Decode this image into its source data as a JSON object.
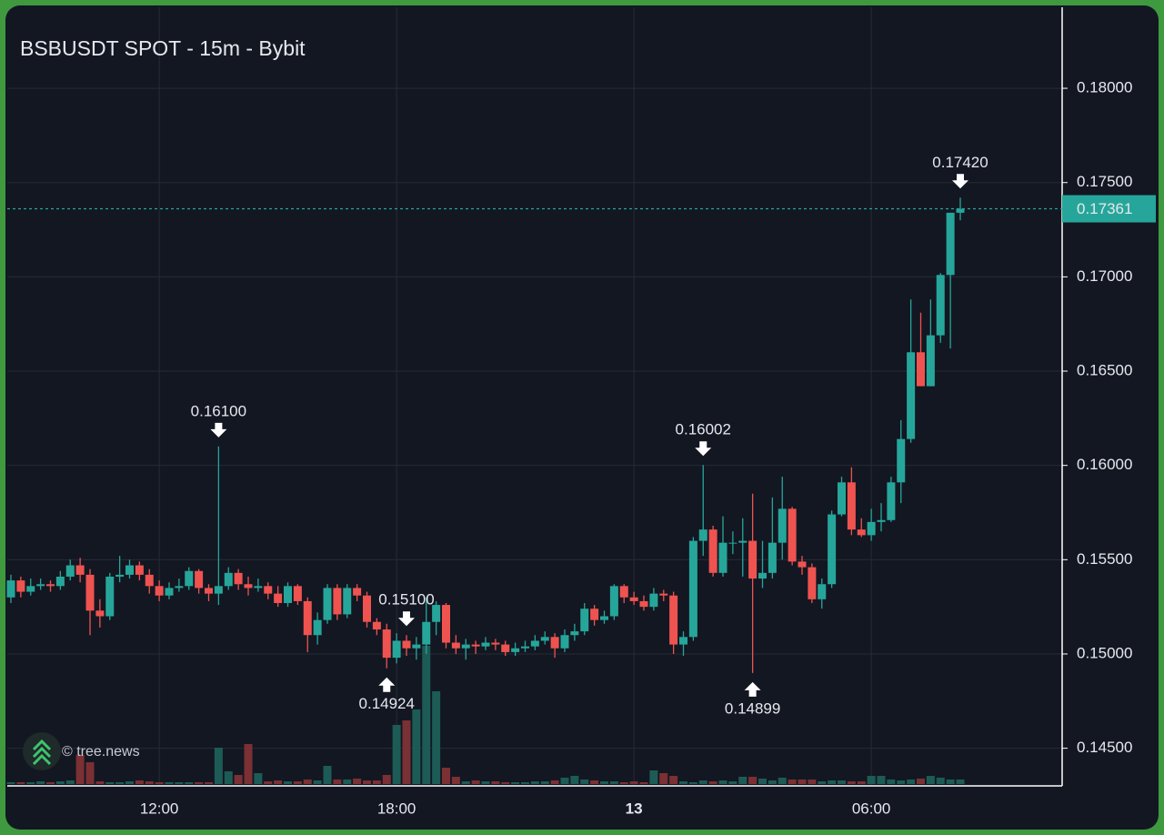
{
  "chart_data": {
    "type": "candlestick",
    "title": "BSBUSDT SPOT - 15m - Bybit",
    "watermark": "© tree.news",
    "categories": [
      null,
      null,
      null,
      null,
      null,
      null,
      null,
      null,
      null,
      null,
      null,
      null,
      null,
      null,
      null,
      "12:00",
      null,
      null,
      null,
      null,
      null,
      null,
      null,
      null,
      null,
      null,
      null,
      null,
      null,
      null,
      null,
      null,
      null,
      null,
      null,
      null,
      null,
      null,
      null,
      "18:00",
      null,
      null,
      null,
      null,
      null,
      null,
      null,
      null,
      null,
      null,
      null,
      null,
      null,
      null,
      null,
      null,
      null,
      null,
      null,
      null,
      null,
      null,
      null,
      "13",
      null,
      null,
      null,
      null,
      null,
      null,
      null,
      null,
      null,
      null,
      null,
      null,
      null,
      null,
      null,
      null,
      null,
      null,
      null,
      null,
      null,
      null,
      null,
      "06:00",
      null,
      null,
      null,
      null,
      null,
      null,
      null,
      null,
      null
    ],
    "open": [
      0.153,
      0.1539,
      0.1533,
      0.1536,
      0.1537,
      0.1536,
      0.1541,
      0.1547,
      0.1542,
      0.1523,
      0.152,
      0.1541,
      0.1542,
      0.1547,
      0.1542,
      0.1536,
      0.1531,
      0.1535,
      0.1536,
      0.1544,
      0.1535,
      0.1532,
      0.1536,
      0.1543,
      0.1537,
      0.1535,
      0.1536,
      0.1532,
      0.1527,
      0.1536,
      0.1528,
      0.151,
      0.1518,
      0.1535,
      0.1521,
      0.1535,
      0.1531,
      0.1517,
      0.1513,
      0.1498,
      0.1507,
      0.1503,
      0.1505,
      0.1517,
      0.1526,
      0.1506,
      0.1503,
      0.1505,
      0.1504,
      0.1506,
      0.1505,
      0.1501,
      0.1503,
      0.1504,
      0.1507,
      0.1509,
      0.1503,
      0.151,
      0.1512,
      0.1524,
      0.1518,
      0.152,
      0.1536,
      0.153,
      0.1528,
      0.1525,
      0.1532,
      0.1531,
      0.1505,
      0.1509,
      0.156,
      0.1566,
      0.1543,
      0.1559,
      0.1559,
      0.156,
      0.154,
      0.1543,
      0.1559,
      0.1577,
      0.1549,
      0.1546,
      0.1529,
      0.1537,
      0.1574,
      0.1591,
      0.1566,
      0.1563,
      0.157,
      0.1571,
      0.1591,
      0.1614,
      0.166,
      0.1642,
      0.1669,
      0.1701,
      0.1734
    ],
    "high": [
      0.1542,
      0.1541,
      0.154,
      0.154,
      0.1539,
      0.1544,
      0.155,
      0.1551,
      0.1545,
      0.1529,
      0.1543,
      0.1552,
      0.155,
      0.1549,
      0.1545,
      0.1539,
      0.1538,
      0.154,
      0.1546,
      0.1545,
      0.1537,
      0.161,
      0.1546,
      0.1545,
      0.1541,
      0.154,
      0.1538,
      0.1536,
      0.1538,
      0.1537,
      0.153,
      0.1522,
      0.1537,
      0.1537,
      0.1537,
      0.1537,
      0.1533,
      0.1519,
      0.1516,
      0.1511,
      0.151,
      0.1509,
      0.153,
      0.1528,
      0.1527,
      0.151,
      0.1508,
      0.1507,
      0.1509,
      0.1508,
      0.1507,
      0.1506,
      0.1507,
      0.151,
      0.1512,
      0.1511,
      0.1513,
      0.1516,
      0.1527,
      0.1526,
      0.1523,
      0.1537,
      0.1537,
      0.1533,
      0.1531,
      0.1535,
      0.1534,
      0.1533,
      0.1512,
      0.1562,
      0.16002,
      0.1568,
      0.1573,
      0.1565,
      0.1572,
      0.1585,
      0.156,
      0.1583,
      0.1594,
      0.1578,
      0.1552,
      0.1548,
      0.154,
      0.1576,
      0.1594,
      0.1599,
      0.1572,
      0.1577,
      0.158,
      0.1594,
      0.1624,
      0.1688,
      0.1681,
      0.1688,
      0.1702,
      0.1734,
      0.1742
    ],
    "low": [
      0.1527,
      0.153,
      0.1531,
      0.1534,
      0.1533,
      0.1534,
      0.1539,
      0.1538,
      0.151,
      0.1514,
      0.1518,
      0.1538,
      0.154,
      0.1539,
      0.1532,
      0.1528,
      0.1529,
      0.1533,
      0.1534,
      0.1532,
      0.1528,
      0.1526,
      0.1534,
      0.1534,
      0.1531,
      0.1533,
      0.1529,
      0.1525,
      0.1525,
      0.1526,
      0.1501,
      0.1505,
      0.1516,
      0.1518,
      0.1519,
      0.1528,
      0.1514,
      0.151,
      0.14924,
      0.1495,
      0.1499,
      0.1497,
      0.15,
      0.151,
      0.1503,
      0.15,
      0.1497,
      0.15,
      0.1502,
      0.1502,
      0.1499,
      0.1499,
      0.1501,
      0.1502,
      0.1505,
      0.1498,
      0.1501,
      0.1507,
      0.151,
      0.1515,
      0.1516,
      0.1518,
      0.1527,
      0.1526,
      0.1523,
      0.1523,
      0.1528,
      0.15,
      0.1499,
      0.1507,
      0.1552,
      0.1541,
      0.1541,
      0.1553,
      0.1541,
      0.14899,
      0.1535,
      0.154,
      0.155,
      0.1547,
      0.1542,
      0.1527,
      0.1524,
      0.1535,
      0.1573,
      0.1563,
      0.1562,
      0.156,
      0.1565,
      0.157,
      0.158,
      0.1612,
      0.1642,
      0.1642,
      0.1665,
      0.1662,
      0.173
    ],
    "close": [
      0.1539,
      0.1533,
      0.1536,
      0.1537,
      0.1536,
      0.1541,
      0.1547,
      0.1542,
      0.1523,
      0.152,
      0.1541,
      0.1542,
      0.1547,
      0.1542,
      0.1536,
      0.1531,
      0.1535,
      0.1536,
      0.1544,
      0.1535,
      0.1532,
      0.1536,
      0.1543,
      0.1537,
      0.1535,
      0.1536,
      0.1532,
      0.1527,
      0.1536,
      0.1528,
      0.151,
      0.1518,
      0.1535,
      0.1521,
      0.1535,
      0.1531,
      0.1517,
      0.1513,
      0.1498,
      0.1507,
      0.1503,
      0.1505,
      0.1517,
      0.1526,
      0.1506,
      0.1503,
      0.1505,
      0.1504,
      0.1506,
      0.1505,
      0.1501,
      0.1503,
      0.1504,
      0.1507,
      0.1509,
      0.1503,
      0.151,
      0.1512,
      0.1524,
      0.1518,
      0.152,
      0.1536,
      0.153,
      0.1528,
      0.1525,
      0.1532,
      0.1531,
      0.1505,
      0.1509,
      0.156,
      0.1566,
      0.1543,
      0.1559,
      0.1559,
      0.156,
      0.154,
      0.1543,
      0.1559,
      0.1577,
      0.1549,
      0.1546,
      0.1529,
      0.1537,
      0.1574,
      0.1591,
      0.1566,
      0.1563,
      0.157,
      0.1571,
      0.1591,
      0.1614,
      0.166,
      0.1642,
      0.1669,
      0.1701,
      0.1734,
      0.17361
    ],
    "volume": [
      2,
      2,
      2,
      3,
      2,
      3,
      4,
      32,
      24,
      3,
      2,
      2,
      3,
      4,
      3,
      2,
      2,
      2,
      2,
      2,
      2,
      40,
      14,
      10,
      44,
      12,
      3,
      4,
      3,
      3,
      5,
      4,
      20,
      5,
      5,
      6,
      4,
      4,
      10,
      65,
      70,
      82,
      152,
      102,
      18,
      8,
      3,
      4,
      3,
      3,
      2,
      2,
      2,
      3,
      3,
      4,
      7,
      9,
      5,
      4,
      3,
      3,
      2,
      3,
      2,
      15,
      12,
      9,
      3,
      2,
      4,
      3,
      4,
      3,
      8,
      8,
      6,
      4,
      7,
      5,
      5,
      5,
      3,
      4,
      4,
      3,
      3,
      9,
      9,
      5,
      4,
      5,
      6,
      9,
      7,
      5,
      5
    ],
    "up_color": "#26a69a",
    "down_color": "#ef5350",
    "up_volume_color": "#1d5b56",
    "down_volume_color": "#7b3034",
    "ylim": [
      0.1431,
      0.1842
    ],
    "yticks": [
      {
        "value": 0.145,
        "label": "0.14500"
      },
      {
        "value": 0.15,
        "label": "0.15000"
      },
      {
        "value": 0.155,
        "label": "0.15500"
      },
      {
        "value": 0.16,
        "label": "0.16000"
      },
      {
        "value": 0.165,
        "label": "0.16500"
      },
      {
        "value": 0.17,
        "label": "0.17000"
      },
      {
        "value": 0.175,
        "label": "0.17500"
      },
      {
        "value": 0.18,
        "label": "0.18000"
      }
    ],
    "grid": true,
    "last_price": {
      "value": 0.17361,
      "label": "0.17361"
    },
    "annotations": [
      {
        "value": 0.151,
        "label": "0.15100"
      },
      {
        "value": 0.161,
        "label": "0.16100"
      },
      {
        "value": 0.14924,
        "label": "0.14924"
      },
      {
        "value": 0.16002,
        "label": "0.16002"
      },
      {
        "value": 0.14899,
        "label": "0.14899"
      },
      {
        "value": 0.1742,
        "label": "0.17420"
      }
    ]
  }
}
